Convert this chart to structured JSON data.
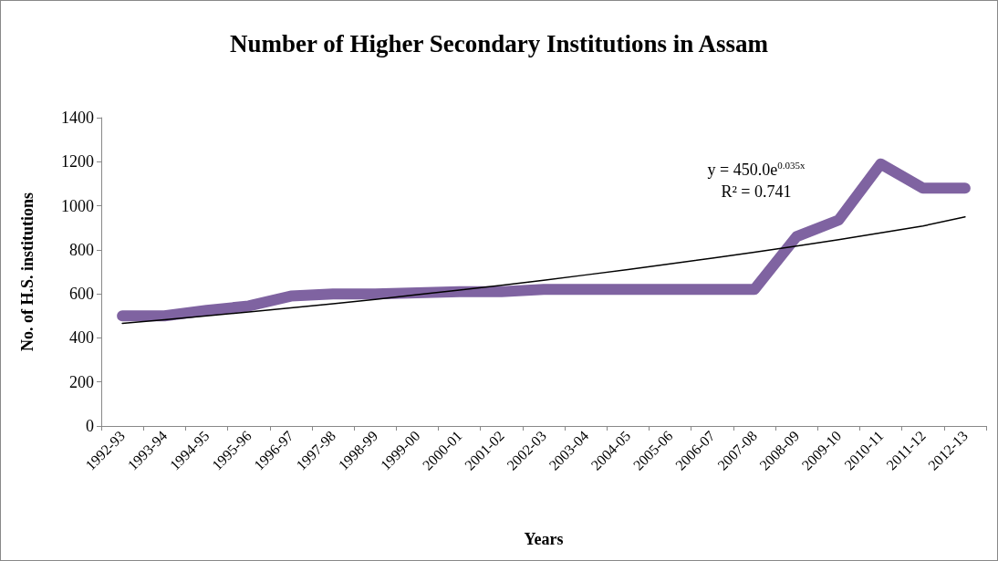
{
  "chart_data": {
    "type": "line",
    "title": "Number of Higher Secondary Institutions in Assam",
    "xlabel": "Years",
    "ylabel": "No. of H.S. institutions",
    "categories": [
      "1992-93",
      "1993-94",
      "1994-95",
      "1995-96",
      "1996-97",
      "1997-98",
      "1998-99",
      "1999-00",
      "2000-01",
      "2001-02",
      "2002-03",
      "2003-04",
      "2004-05",
      "2005-06",
      "2006-07",
      "2007-08",
      "2008-09",
      "2009-10",
      "2010-11",
      "2011-12",
      "2012-13"
    ],
    "series": [
      {
        "color": "#7f63a1",
        "values": [
          500,
          500,
          525,
          545,
          590,
          600,
          600,
          605,
          610,
          610,
          620,
          620,
          620,
          620,
          620,
          620,
          860,
          935,
          1190,
          1080,
          1080
        ]
      },
      {
        "type": "line",
        "color": "#000000",
        "values": [
          466,
          483,
          500,
          518,
          536,
          555,
          575,
          596,
          617,
          639,
          662,
          686,
          710,
          736,
          762,
          789,
          817,
          846,
          877,
          908,
          950
        ]
      }
    ],
    "annotations": [
      "y = 450.0e$^{0.035x}$",
      "R² = 0.741"
    ],
    "ylim": [
      0,
      1400
    ],
    "yticks": [
      0,
      200,
      400,
      600,
      800,
      1000,
      1200,
      1400
    ],
    "grid": false,
    "marker": "none",
    "line_style": "solid"
  }
}
